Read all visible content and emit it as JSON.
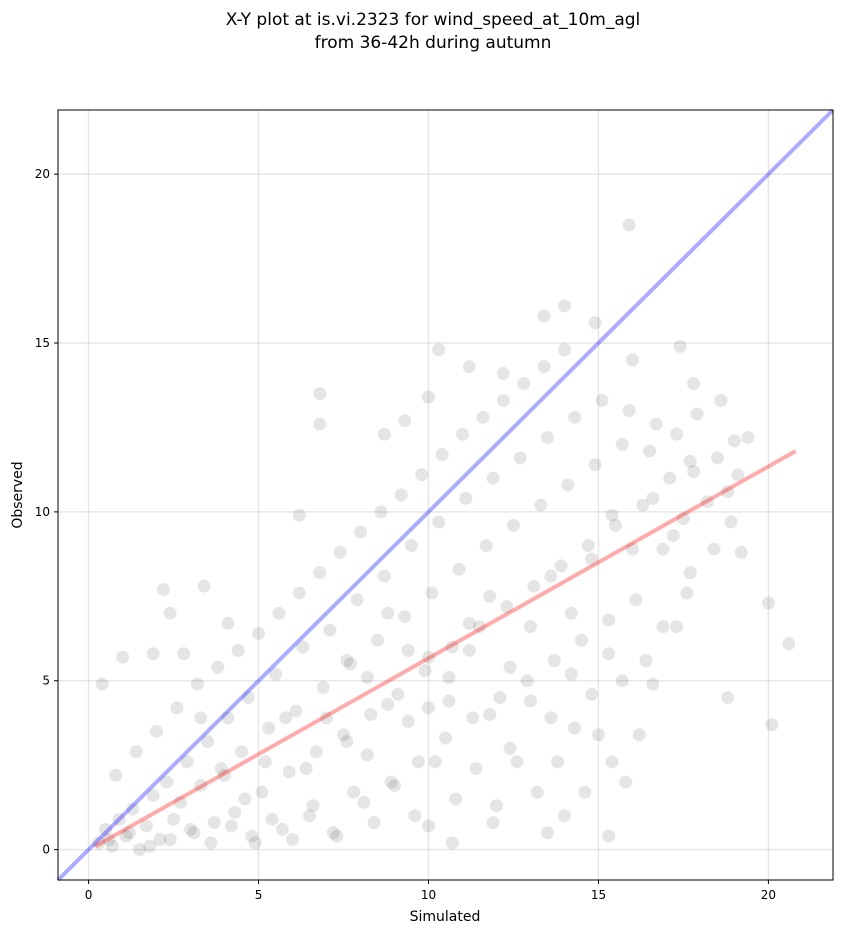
{
  "chart_data": {
    "type": "scatter",
    "title": "X-Y plot at is.vi.2323 for wind_speed_at_10m_agl",
    "subtitle": "from 36-42h during autumn",
    "xlabel": "Simulated",
    "ylabel": "Observed",
    "xlim": [
      -0.9,
      21.9
    ],
    "ylim": [
      -0.9,
      21.9
    ],
    "xticks": [
      0,
      5,
      10,
      15,
      20
    ],
    "yticks": [
      0,
      5,
      10,
      15,
      20
    ],
    "grid": true,
    "colors": {
      "points": "#000000",
      "identity_line": "#0000ff",
      "regression_line": "#ff0000"
    },
    "series": [
      {
        "values": [
          [
            0.4,
            4.9
          ],
          [
            1.0,
            5.7
          ],
          [
            1.9,
            5.8
          ],
          [
            2.2,
            7.7
          ],
          [
            2.4,
            7.0
          ],
          [
            2.8,
            5.8
          ],
          [
            3.4,
            7.8
          ],
          [
            4.1,
            6.7
          ],
          [
            6.2,
            9.9
          ],
          [
            6.8,
            13.5
          ],
          [
            6.8,
            12.6
          ],
          [
            8.7,
            12.3
          ],
          [
            9.3,
            12.7
          ],
          [
            10.0,
            13.4
          ],
          [
            10.3,
            14.8
          ],
          [
            11.2,
            14.3
          ],
          [
            12.2,
            14.1
          ],
          [
            13.4,
            15.8
          ],
          [
            14.0,
            16.1
          ],
          [
            14.9,
            15.6
          ],
          [
            15.9,
            18.5
          ],
          [
            16.0,
            14.5
          ],
          [
            17.4,
            14.9
          ],
          [
            17.8,
            13.8
          ],
          [
            18.6,
            13.3
          ],
          [
            19.0,
            12.1
          ],
          [
            19.1,
            11.1
          ],
          [
            19.4,
            12.2
          ],
          [
            18.8,
            4.5
          ],
          [
            20.0,
            7.3
          ],
          [
            20.1,
            3.7
          ],
          [
            20.6,
            6.1
          ],
          [
            15.3,
            0.4
          ],
          [
            14.0,
            1.0
          ],
          [
            13.5,
            0.5
          ],
          [
            11.9,
            0.8
          ],
          [
            10.7,
            0.2
          ],
          [
            10.0,
            0.7
          ],
          [
            0.3,
            0.2
          ],
          [
            0.5,
            0.6
          ],
          [
            0.7,
            0.1
          ],
          [
            0.9,
            0.9
          ],
          [
            1.1,
            0.4
          ],
          [
            1.3,
            1.2
          ],
          [
            1.5,
            0.0
          ],
          [
            1.7,
            0.7
          ],
          [
            1.9,
            1.6
          ],
          [
            2.1,
            0.3
          ],
          [
            2.3,
            2.0
          ],
          [
            2.5,
            0.9
          ],
          [
            2.7,
            1.4
          ],
          [
            2.9,
            2.6
          ],
          [
            3.1,
            0.5
          ],
          [
            3.3,
            1.9
          ],
          [
            3.5,
            3.2
          ],
          [
            3.7,
            0.8
          ],
          [
            3.9,
            2.4
          ],
          [
            4.1,
            3.9
          ],
          [
            4.3,
            1.1
          ],
          [
            4.5,
            2.9
          ],
          [
            4.7,
            4.5
          ],
          [
            4.9,
            0.2
          ],
          [
            5.1,
            1.7
          ],
          [
            5.3,
            3.6
          ],
          [
            5.5,
            5.2
          ],
          [
            5.7,
            0.6
          ],
          [
            5.9,
            2.3
          ],
          [
            6.1,
            4.1
          ],
          [
            6.3,
            6.0
          ],
          [
            6.5,
            1.0
          ],
          [
            6.7,
            2.9
          ],
          [
            6.9,
            4.8
          ],
          [
            7.1,
            6.5
          ],
          [
            7.3,
            0.4
          ],
          [
            7.5,
            3.4
          ],
          [
            7.7,
            5.5
          ],
          [
            7.9,
            7.4
          ],
          [
            8.1,
            1.4
          ],
          [
            8.3,
            4.0
          ],
          [
            8.5,
            6.2
          ],
          [
            8.7,
            8.1
          ],
          [
            8.9,
            2.0
          ],
          [
            9.1,
            4.6
          ],
          [
            9.3,
            6.9
          ],
          [
            9.5,
            9.0
          ],
          [
            9.7,
            2.6
          ],
          [
            9.9,
            5.3
          ],
          [
            10.1,
            7.6
          ],
          [
            10.3,
            9.7
          ],
          [
            10.5,
            3.3
          ],
          [
            10.7,
            6.0
          ],
          [
            10.9,
            8.3
          ],
          [
            11.1,
            10.4
          ],
          [
            11.3,
            3.9
          ],
          [
            11.5,
            6.6
          ],
          [
            11.7,
            9.0
          ],
          [
            11.9,
            11.0
          ],
          [
            12.1,
            4.5
          ],
          [
            12.3,
            7.2
          ],
          [
            12.5,
            9.6
          ],
          [
            12.7,
            11.6
          ],
          [
            12.9,
            5.0
          ],
          [
            13.1,
            7.8
          ],
          [
            13.3,
            10.2
          ],
          [
            13.5,
            12.2
          ],
          [
            13.7,
            5.6
          ],
          [
            13.9,
            8.4
          ],
          [
            14.1,
            10.8
          ],
          [
            14.3,
            12.8
          ],
          [
            14.5,
            6.2
          ],
          [
            14.7,
            9.0
          ],
          [
            14.9,
            11.4
          ],
          [
            15.1,
            13.3
          ],
          [
            15.3,
            6.8
          ],
          [
            15.5,
            9.6
          ],
          [
            15.7,
            12.0
          ],
          [
            15.9,
            13.0
          ],
          [
            16.1,
            7.4
          ],
          [
            16.3,
            10.2
          ],
          [
            16.5,
            11.8
          ],
          [
            16.7,
            12.6
          ],
          [
            16.9,
            8.9
          ],
          [
            17.1,
            11.0
          ],
          [
            17.3,
            12.3
          ],
          [
            17.5,
            9.8
          ],
          [
            17.7,
            11.5
          ],
          [
            17.9,
            12.9
          ],
          [
            18.2,
            10.3
          ],
          [
            18.5,
            11.6
          ],
          [
            18.8,
            10.6
          ],
          [
            16.6,
            4.9
          ],
          [
            16.2,
            3.4
          ],
          [
            15.8,
            2.0
          ],
          [
            15.4,
            2.6
          ],
          [
            15.0,
            3.4
          ],
          [
            14.6,
            1.7
          ],
          [
            14.3,
            3.6
          ],
          [
            13.8,
            2.6
          ],
          [
            13.2,
            1.7
          ],
          [
            12.6,
            2.6
          ],
          [
            12.0,
            1.3
          ],
          [
            11.4,
            2.4
          ],
          [
            10.8,
            1.5
          ],
          [
            10.2,
            2.6
          ],
          [
            9.6,
            1.0
          ],
          [
            9.0,
            1.9
          ],
          [
            8.4,
            0.8
          ],
          [
            7.8,
            1.7
          ],
          [
            7.2,
            0.5
          ],
          [
            6.6,
            1.3
          ],
          [
            6.0,
            0.3
          ],
          [
            5.4,
            0.9
          ],
          [
            4.8,
            0.4
          ],
          [
            4.2,
            0.7
          ],
          [
            3.6,
            0.2
          ],
          [
            3.0,
            0.6
          ],
          [
            2.4,
            0.3
          ],
          [
            1.8,
            0.1
          ],
          [
            1.2,
            0.5
          ],
          [
            0.6,
            0.3
          ],
          [
            0.8,
            2.2
          ],
          [
            1.4,
            2.9
          ],
          [
            2.0,
            3.5
          ],
          [
            2.6,
            4.2
          ],
          [
            3.2,
            4.9
          ],
          [
            3.8,
            5.4
          ],
          [
            4.4,
            5.9
          ],
          [
            5.0,
            6.4
          ],
          [
            5.6,
            7.0
          ],
          [
            6.2,
            7.6
          ],
          [
            6.8,
            8.2
          ],
          [
            7.4,
            8.8
          ],
          [
            8.0,
            9.4
          ],
          [
            8.6,
            10.0
          ],
          [
            9.2,
            10.5
          ],
          [
            9.8,
            11.1
          ],
          [
            10.4,
            11.7
          ],
          [
            11.0,
            12.3
          ],
          [
            11.6,
            12.8
          ],
          [
            12.2,
            13.3
          ],
          [
            12.8,
            13.8
          ],
          [
            13.4,
            14.3
          ],
          [
            14.0,
            14.8
          ],
          [
            7.6,
            3.2
          ],
          [
            8.2,
            5.1
          ],
          [
            8.8,
            7.0
          ],
          [
            9.4,
            3.8
          ],
          [
            10.0,
            5.7
          ],
          [
            10.6,
            4.4
          ],
          [
            11.2,
            5.9
          ],
          [
            11.8,
            7.5
          ],
          [
            12.4,
            5.4
          ],
          [
            13.0,
            6.6
          ],
          [
            13.6,
            8.1
          ],
          [
            14.2,
            7.0
          ],
          [
            14.8,
            8.6
          ],
          [
            15.4,
            9.9
          ],
          [
            16.0,
            8.9
          ],
          [
            16.6,
            10.4
          ],
          [
            17.2,
            9.3
          ],
          [
            17.8,
            11.2
          ],
          [
            18.4,
            8.9
          ],
          [
            18.9,
            9.7
          ],
          [
            19.2,
            8.8
          ],
          [
            17.3,
            6.6
          ],
          [
            17.6,
            7.6
          ],
          [
            17.7,
            8.2
          ],
          [
            3.3,
            3.9
          ],
          [
            4.0,
            2.2
          ],
          [
            4.6,
            1.5
          ],
          [
            5.2,
            2.6
          ],
          [
            5.8,
            3.9
          ],
          [
            6.4,
            2.4
          ],
          [
            7.0,
            3.9
          ],
          [
            7.6,
            5.6
          ],
          [
            8.2,
            2.8
          ],
          [
            8.8,
            4.3
          ],
          [
            9.4,
            5.9
          ],
          [
            10.0,
            4.2
          ],
          [
            10.6,
            5.1
          ],
          [
            11.2,
            6.7
          ],
          [
            11.8,
            4.0
          ],
          [
            12.4,
            3.0
          ],
          [
            13.0,
            4.4
          ],
          [
            13.6,
            3.9
          ],
          [
            14.2,
            5.2
          ],
          [
            14.8,
            4.6
          ],
          [
            15.3,
            5.8
          ],
          [
            15.7,
            5.0
          ],
          [
            16.4,
            5.6
          ],
          [
            16.9,
            6.6
          ]
        ]
      }
    ],
    "identity_line": {
      "from": [
        -0.9,
        -0.9
      ],
      "to": [
        21.9,
        21.9
      ]
    },
    "regression_line": {
      "from": [
        0.2,
        0.1
      ],
      "to": [
        20.8,
        11.8
      ]
    }
  }
}
